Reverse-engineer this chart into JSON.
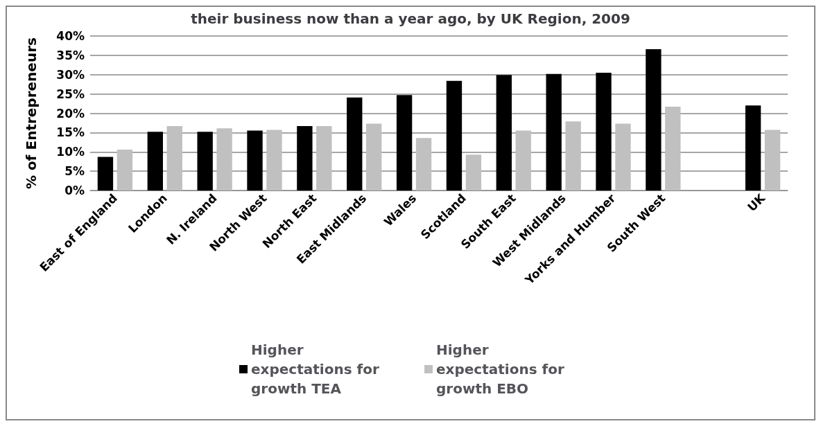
{
  "chart_data": {
    "type": "bar",
    "title": "their business now than a year ago, by UK Region, 2009",
    "ylabel": "% of Entrepreneurs",
    "categories": [
      "East of England",
      "London",
      "N. Ireland",
      "North West",
      "North East",
      "East Midlands",
      "Wales",
      "Scotland",
      "South East",
      "West Midlands",
      "Yorks and Humber",
      "South West",
      null,
      "UK"
    ],
    "series": [
      {
        "name": "Higher expectations for growth TEA",
        "color": "#000000",
        "values": [
          8.7,
          15.2,
          15.2,
          15.5,
          16.7,
          24.1,
          24.7,
          28.4,
          29.9,
          30.2,
          30.5,
          36.6,
          null,
          22.0
        ]
      },
      {
        "name": "Higher expectations for growth EBO",
        "color": "#c0c0c0",
        "values": [
          10.6,
          16.7,
          16.1,
          15.7,
          16.7,
          17.3,
          13.6,
          9.3,
          15.5,
          17.9,
          17.3,
          21.7,
          null,
          15.7
        ]
      }
    ],
    "ylim": [
      0,
      40
    ],
    "yticks": [
      {
        "value": 0,
        "label": "0%"
      },
      {
        "value": 5,
        "label": "5%"
      },
      {
        "value": 10,
        "label": "10%"
      },
      {
        "value": 15,
        "label": "15%"
      },
      {
        "value": 20,
        "label": "20%"
      },
      {
        "value": 25,
        "label": "25%"
      },
      {
        "value": 30,
        "label": "30%"
      },
      {
        "value": 35,
        "label": "35%"
      },
      {
        "value": 40,
        "label": "40%"
      }
    ],
    "grid": "y",
    "legend": "bottom"
  }
}
